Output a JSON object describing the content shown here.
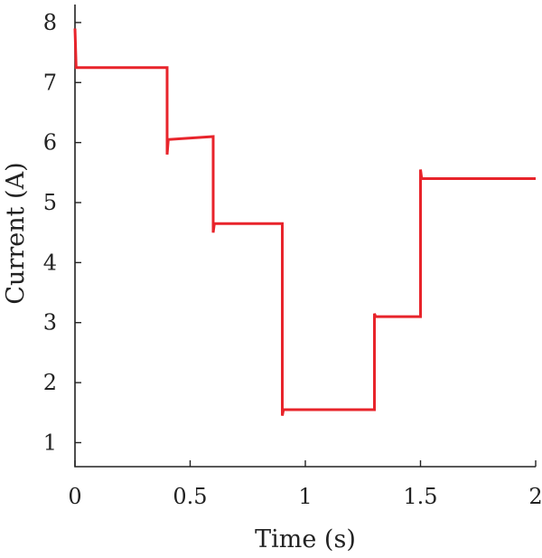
{
  "chart_data": {
    "type": "line",
    "title": "",
    "xlabel": "Time (s)",
    "ylabel": "Current (A)",
    "xlim": [
      0,
      2
    ],
    "ylim": [
      0.6,
      8.3
    ],
    "xticks": [
      0,
      0.5,
      1,
      1.5,
      2
    ],
    "xtick_labels": [
      "0",
      "0.5",
      "1",
      "1.5",
      "2"
    ],
    "yticks": [
      1,
      2,
      3,
      4,
      5,
      6,
      7,
      8
    ],
    "ytick_labels": [
      "1",
      "2",
      "3",
      "4",
      "5",
      "6",
      "7",
      "8"
    ],
    "grid": false,
    "legend": "none",
    "series": [
      {
        "color": "#e8242b",
        "x": [
          0,
          0.005,
          0.01,
          0.4,
          0.4,
          0.405,
          0.6,
          0.6,
          0.605,
          0.9,
          0.9,
          0.905,
          1.3,
          1.3,
          1.305,
          1.5,
          1.5,
          1.505,
          2.0
        ],
        "y": [
          7.9,
          7.25,
          7.25,
          7.25,
          5.8,
          6.05,
          6.1,
          4.5,
          4.65,
          4.65,
          1.45,
          1.55,
          1.55,
          3.15,
          3.1,
          3.1,
          5.55,
          5.4,
          5.4
        ]
      }
    ]
  }
}
